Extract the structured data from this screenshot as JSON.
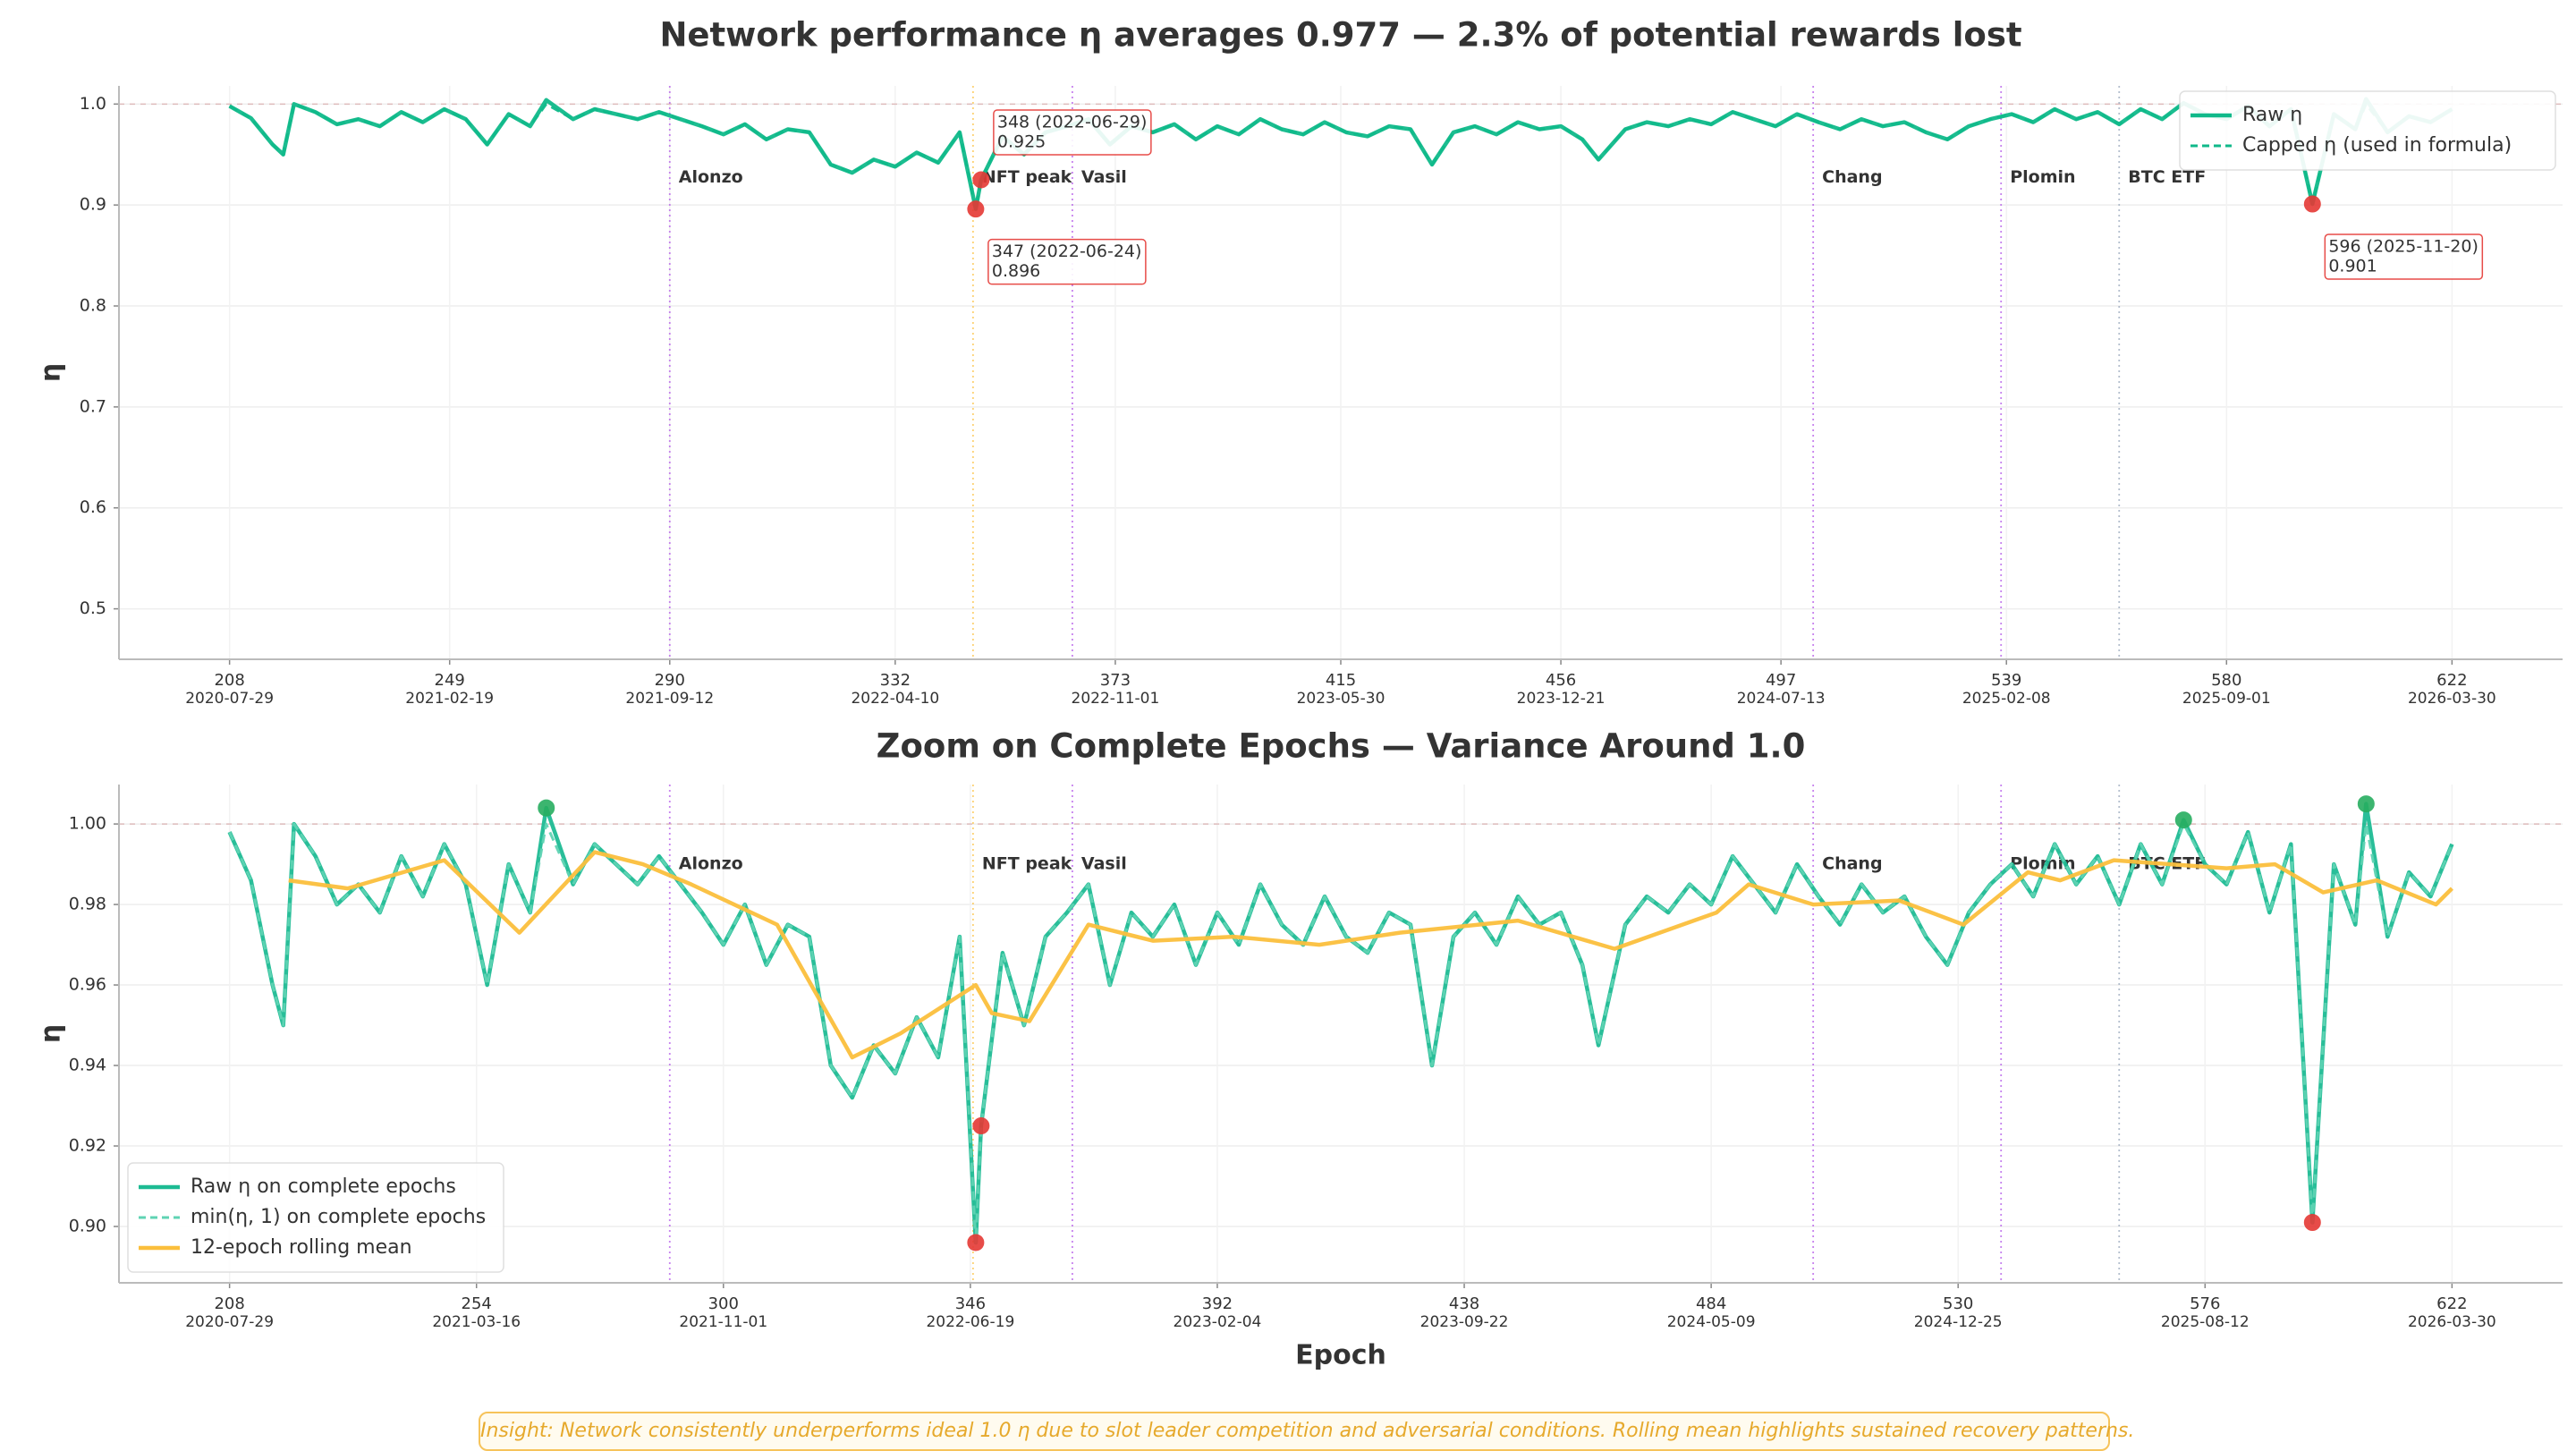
{
  "insight": "Insight: Network consistently underperforms ideal 1.0 η due to slot leader competition and adversarial conditions. Rolling mean highlights sustained recovery patterns.",
  "chart_data": [
    {
      "type": "line",
      "title": "Network performance η averages 0.977 — 2.3% of potential rewards lost",
      "ylabel": "η",
      "x": [
        208,
        212,
        216,
        218,
        220,
        224,
        228,
        232,
        236,
        240,
        244,
        248,
        252,
        256,
        260,
        264,
        267,
        272,
        276,
        280,
        284,
        288,
        292,
        296,
        300,
        304,
        308,
        312,
        316,
        320,
        324,
        328,
        332,
        336,
        340,
        344,
        347,
        348,
        352,
        356,
        360,
        364,
        368,
        372,
        376,
        380,
        384,
        388,
        392,
        396,
        400,
        404,
        408,
        412,
        416,
        420,
        424,
        428,
        432,
        436,
        440,
        444,
        448,
        452,
        456,
        460,
        463,
        468,
        472,
        476,
        480,
        484,
        488,
        492,
        496,
        500,
        504,
        508,
        512,
        516,
        520,
        524,
        528,
        532,
        536,
        540,
        544,
        548,
        552,
        556,
        560,
        564,
        568,
        572,
        576,
        580,
        584,
        588,
        592,
        596,
        600,
        604,
        606,
        610,
        614,
        618,
        622
      ],
      "series": [
        {
          "name": "Raw η",
          "color": "#10b98a",
          "dashed": false,
          "values": [
            0.998,
            0.986,
            0.96,
            0.95,
            1.0,
            0.992,
            0.98,
            0.985,
            0.978,
            0.992,
            0.982,
            0.995,
            0.985,
            0.96,
            0.99,
            0.978,
            1.004,
            0.985,
            0.995,
            0.99,
            0.985,
            0.992,
            0.985,
            0.978,
            0.97,
            0.98,
            0.965,
            0.975,
            0.972,
            0.94,
            0.932,
            0.945,
            0.938,
            0.952,
            0.942,
            0.972,
            0.896,
            0.925,
            0.968,
            0.95,
            0.972,
            0.978,
            0.985,
            0.96,
            0.978,
            0.972,
            0.98,
            0.965,
            0.978,
            0.97,
            0.985,
            0.975,
            0.97,
            0.982,
            0.972,
            0.968,
            0.978,
            0.975,
            0.94,
            0.972,
            0.978,
            0.97,
            0.982,
            0.975,
            0.978,
            0.965,
            0.945,
            0.975,
            0.982,
            0.978,
            0.985,
            0.98,
            0.992,
            0.985,
            0.978,
            0.99,
            0.982,
            0.975,
            0.985,
            0.978,
            0.982,
            0.972,
            0.965,
            0.978,
            0.985,
            0.99,
            0.982,
            0.995,
            0.985,
            0.992,
            0.98,
            0.995,
            0.985,
            1.001,
            0.99,
            0.985,
            0.998,
            0.978,
            0.995,
            0.901,
            0.99,
            0.975,
            1.005,
            0.972,
            0.988,
            0.982,
            0.995
          ]
        },
        {
          "name": "Capped η (used in formula)",
          "color": "#10b98a",
          "dashed": true,
          "values": [
            0.998,
            0.986,
            0.96,
            0.95,
            1.0,
            0.992,
            0.98,
            0.985,
            0.978,
            0.992,
            0.982,
            0.995,
            0.985,
            0.96,
            0.99,
            0.978,
            1.0,
            0.985,
            0.995,
            0.99,
            0.985,
            0.992,
            0.985,
            0.978,
            0.97,
            0.98,
            0.965,
            0.975,
            0.972,
            0.94,
            0.932,
            0.945,
            0.938,
            0.952,
            0.942,
            0.972,
            0.896,
            0.925,
            0.968,
            0.95,
            0.972,
            0.978,
            0.985,
            0.96,
            0.978,
            0.972,
            0.98,
            0.965,
            0.978,
            0.97,
            0.985,
            0.975,
            0.97,
            0.982,
            0.972,
            0.968,
            0.978,
            0.975,
            0.94,
            0.972,
            0.978,
            0.97,
            0.982,
            0.975,
            0.978,
            0.965,
            0.945,
            0.975,
            0.982,
            0.978,
            0.985,
            0.98,
            0.992,
            0.985,
            0.978,
            0.99,
            0.982,
            0.975,
            0.985,
            0.978,
            0.982,
            0.972,
            0.965,
            0.978,
            0.985,
            0.99,
            0.982,
            0.995,
            0.985,
            0.992,
            0.98,
            0.995,
            0.985,
            1.0,
            0.99,
            0.985,
            0.998,
            0.978,
            0.995,
            0.901,
            0.99,
            0.975,
            1.0,
            0.972,
            0.988,
            0.982,
            0.995
          ]
        }
      ],
      "xlim": [
        187.4,
        642.6
      ],
      "ylim": [
        0.45,
        1.018
      ],
      "xticks": [
        208,
        249,
        290,
        332,
        373,
        415,
        456,
        497,
        539,
        580,
        622
      ],
      "xtick_dates": [
        "2020-07-29",
        "2021-02-19",
        "2021-09-12",
        "2022-04-10",
        "2022-11-01",
        "2023-05-30",
        "2023-12-21",
        "2024-07-13",
        "2025-02-08",
        "2025-09-01",
        "2026-03-30"
      ],
      "yticks": [
        0.5,
        0.6,
        0.7,
        0.8,
        0.9,
        {
          "value": 1,
          "label": "1.0"
        }
      ],
      "grid": true,
      "hline": 1,
      "legend": "upper right",
      "events": [
        {
          "x": 290,
          "label": "Alonzo",
          "color": "#b04fe8"
        },
        {
          "x": 346.5,
          "label": "NFT peak",
          "color": "#fbbf3c"
        },
        {
          "x": 365,
          "label": "Vasil",
          "color": "#b04fe8"
        },
        {
          "x": 503,
          "label": "Chang",
          "color": "#b04fe8"
        },
        {
          "x": 538,
          "label": "Plomin",
          "color": "#b04fe8"
        },
        {
          "x": 560,
          "label": "BTC ETF",
          "color": "#94a3b8"
        }
      ],
      "highlights": [
        {
          "x": 347,
          "y": 0.896,
          "color": "#e53935"
        },
        {
          "x": 348,
          "y": 0.925,
          "color": "#e53935"
        },
        {
          "x": 596,
          "y": 0.901,
          "color": "#e53935"
        }
      ],
      "annotations": [
        {
          "x": 348,
          "y": 0.925,
          "label": "348 (2022-06-29)"
        },
        {
          "x": 347,
          "y": 0.896,
          "label": "347 (2022-06-24)"
        },
        {
          "x": 596,
          "y": 0.901,
          "label": "596 (2025-11-20)"
        }
      ]
    },
    {
      "type": "line",
      "title": "Zoom on Complete Epochs — Variance Around 1.0",
      "xlabel": "Epoch",
      "ylabel": "η",
      "x": [
        208,
        212,
        216,
        218,
        220,
        224,
        228,
        232,
        236,
        240,
        244,
        248,
        252,
        256,
        260,
        264,
        267,
        272,
        276,
        280,
        284,
        288,
        292,
        296,
        300,
        304,
        308,
        312,
        316,
        320,
        324,
        328,
        332,
        336,
        340,
        344,
        347,
        348,
        352,
        356,
        360,
        364,
        368,
        372,
        376,
        380,
        384,
        388,
        392,
        396,
        400,
        404,
        408,
        412,
        416,
        420,
        424,
        428,
        432,
        436,
        440,
        444,
        448,
        452,
        456,
        460,
        463,
        468,
        472,
        476,
        480,
        484,
        488,
        492,
        496,
        500,
        504,
        508,
        512,
        516,
        520,
        524,
        528,
        532,
        536,
        540,
        544,
        548,
        552,
        556,
        560,
        564,
        568,
        572,
        576,
        580,
        584,
        588,
        592,
        596,
        600,
        604,
        606,
        610,
        614,
        618,
        622
      ],
      "series": [
        {
          "name": "Raw η on complete epochs",
          "color": "#1dbb93",
          "dashed": false,
          "values": [
            0.998,
            0.986,
            0.96,
            0.95,
            1.0,
            0.992,
            0.98,
            0.985,
            0.978,
            0.992,
            0.982,
            0.995,
            0.985,
            0.96,
            0.99,
            0.978,
            1.004,
            0.985,
            0.995,
            0.99,
            0.985,
            0.992,
            0.985,
            0.978,
            0.97,
            0.98,
            0.965,
            0.975,
            0.972,
            0.94,
            0.932,
            0.945,
            0.938,
            0.952,
            0.942,
            0.972,
            0.896,
            0.925,
            0.968,
            0.95,
            0.972,
            0.978,
            0.985,
            0.96,
            0.978,
            0.972,
            0.98,
            0.965,
            0.978,
            0.97,
            0.985,
            0.975,
            0.97,
            0.982,
            0.972,
            0.968,
            0.978,
            0.975,
            0.94,
            0.972,
            0.978,
            0.97,
            0.982,
            0.975,
            0.978,
            0.965,
            0.945,
            0.975,
            0.982,
            0.978,
            0.985,
            0.98,
            0.992,
            0.985,
            0.978,
            0.99,
            0.982,
            0.975,
            0.985,
            0.978,
            0.982,
            0.972,
            0.965,
            0.978,
            0.985,
            0.99,
            0.982,
            0.995,
            0.985,
            0.992,
            0.98,
            0.995,
            0.985,
            1.001,
            0.99,
            0.985,
            0.998,
            0.978,
            0.995,
            0.901,
            0.99,
            0.975,
            1.005,
            0.972,
            0.988,
            0.982,
            0.995
          ]
        },
        {
          "name": "min(η, 1) on complete epochs",
          "color": "#5fd3b3",
          "dashed": true,
          "values": [
            0.998,
            0.986,
            0.96,
            0.95,
            1.0,
            0.992,
            0.98,
            0.985,
            0.978,
            0.992,
            0.982,
            0.995,
            0.985,
            0.96,
            0.99,
            0.978,
            1.0,
            0.985,
            0.995,
            0.99,
            0.985,
            0.992,
            0.985,
            0.978,
            0.97,
            0.98,
            0.965,
            0.975,
            0.972,
            0.94,
            0.932,
            0.945,
            0.938,
            0.952,
            0.942,
            0.972,
            0.896,
            0.925,
            0.968,
            0.95,
            0.972,
            0.978,
            0.985,
            0.96,
            0.978,
            0.972,
            0.98,
            0.965,
            0.978,
            0.97,
            0.985,
            0.975,
            0.97,
            0.982,
            0.972,
            0.968,
            0.978,
            0.975,
            0.94,
            0.972,
            0.978,
            0.97,
            0.982,
            0.975,
            0.978,
            0.965,
            0.945,
            0.975,
            0.982,
            0.978,
            0.985,
            0.98,
            0.992,
            0.985,
            0.978,
            0.99,
            0.982,
            0.975,
            0.985,
            0.978,
            0.982,
            0.972,
            0.965,
            0.978,
            0.985,
            0.99,
            0.982,
            0.995,
            0.985,
            0.992,
            0.98,
            0.995,
            0.985,
            1.0,
            0.99,
            0.985,
            0.998,
            0.978,
            0.995,
            0.901,
            0.99,
            0.975,
            1.0,
            0.972,
            0.988,
            0.982,
            0.995
          ]
        },
        {
          "name": "12-epoch rolling mean",
          "color": "#fbbf3c",
          "dashed": false,
          "x": [
            219,
            230,
            248,
            262,
            276,
            285,
            294,
            310,
            324,
            333,
            347,
            350,
            357,
            368,
            380,
            395,
            411,
            426,
            448,
            466,
            485,
            491,
            503,
            519,
            531,
            543,
            549,
            559,
            580,
            589,
            598,
            608,
            619,
            622
          ],
          "values": [
            0.986,
            0.984,
            0.991,
            0.973,
            0.993,
            0.99,
            0.985,
            0.975,
            0.942,
            0.948,
            0.96,
            0.953,
            0.951,
            0.975,
            0.971,
            0.972,
            0.97,
            0.973,
            0.976,
            0.969,
            0.978,
            0.985,
            0.98,
            0.981,
            0.975,
            0.988,
            0.986,
            0.991,
            0.989,
            0.99,
            0.983,
            0.986,
            0.98,
            0.984
          ]
        }
      ],
      "xlim": [
        187.4,
        642.6
      ],
      "ylim": [
        0.886,
        1.0098
      ],
      "xticks": [
        208,
        254,
        300,
        346,
        392,
        438,
        484,
        530,
        576,
        622
      ],
      "xtick_dates": [
        "2020-07-29",
        "2021-03-16",
        "2021-11-01",
        "2022-06-19",
        "2023-02-04",
        "2023-09-22",
        "2024-05-09",
        "2024-12-25",
        "2025-08-12",
        "2026-03-30"
      ],
      "yticks": [
        {
          "value": 0.9,
          "label": "0.90"
        },
        {
          "value": 0.92,
          "label": "0.92"
        },
        {
          "value": 0.94,
          "label": "0.94"
        },
        {
          "value": 0.96,
          "label": "0.96"
        },
        {
          "value": 0.98,
          "label": "0.98"
        },
        {
          "value": 1,
          "label": "1.00"
        }
      ],
      "grid": true,
      "hline": 1,
      "legend": "lower left",
      "events": [
        {
          "x": 290,
          "label": "Alonzo",
          "color": "#b04fe8"
        },
        {
          "x": 346.5,
          "label": "NFT peak",
          "color": "#fbbf3c"
        },
        {
          "x": 365,
          "label": "Vasil",
          "color": "#b04fe8"
        },
        {
          "x": 503,
          "label": "Chang",
          "color": "#b04fe8"
        },
        {
          "x": 538,
          "label": "Plomin",
          "color": "#b04fe8"
        },
        {
          "x": 560,
          "label": "BTC ETF",
          "color": "#94a3b8"
        }
      ],
      "highlights": [
        {
          "x": 347,
          "y": 0.896,
          "color": "#e53935"
        },
        {
          "x": 348,
          "y": 0.925,
          "color": "#e53935"
        },
        {
          "x": 596,
          "y": 0.901,
          "color": "#e53935"
        },
        {
          "x": 267,
          "y": 1.004,
          "color": "#27ae60"
        },
        {
          "x": 572,
          "y": 1.001,
          "color": "#27ae60"
        },
        {
          "x": 606,
          "y": 1.005,
          "color": "#27ae60"
        }
      ]
    }
  ]
}
